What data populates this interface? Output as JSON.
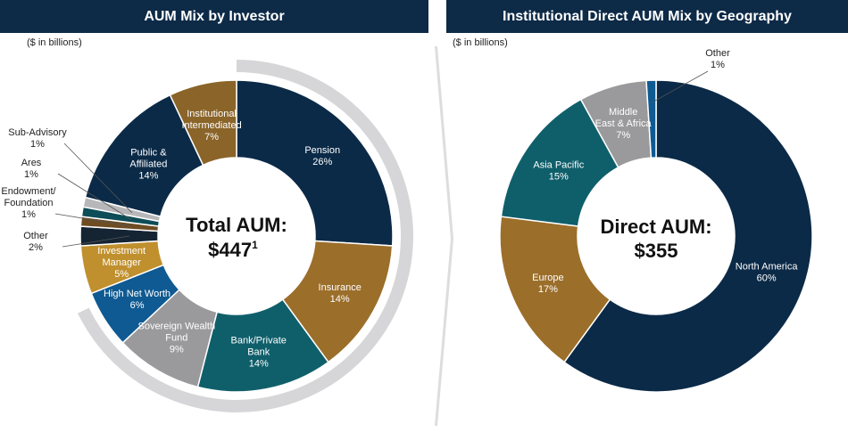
{
  "units_label": "($ in billions)",
  "chart_data": [
    {
      "type": "pie",
      "title": "AUM Mix by Investor",
      "center_title": "Total AUM:",
      "center_value": "$447",
      "center_footnote": "1",
      "slices": [
        {
          "name": "Pension",
          "value": 26,
          "label": "26%",
          "color": "#0b2a47"
        },
        {
          "name": "Insurance",
          "value": 14,
          "label": "14%",
          "color": "#9b6e2a"
        },
        {
          "name": "Bank/Private Bank",
          "value": 14,
          "label": "14%",
          "color": "#0f5f6b"
        },
        {
          "name": "Sovereign Wealth Fund",
          "value": 9,
          "label": "9%",
          "color": "#9a9a9d"
        },
        {
          "name": "High Net Worth",
          "value": 6,
          "label": "6%",
          "color": "#0f5a92"
        },
        {
          "name": "Investment Manager",
          "value": 5,
          "label": "5%",
          "color": "#c0902e"
        },
        {
          "name": "Other",
          "value": 2,
          "label": "2%",
          "color": "#142433"
        },
        {
          "name": "Endowment/ Foundation",
          "value": 1,
          "label": "1%",
          "color": "#6f4d22"
        },
        {
          "name": "Ares",
          "value": 1,
          "label": "1%",
          "color": "#0d4d57"
        },
        {
          "name": "Sub-Advisory",
          "value": 1,
          "label": "1%",
          "color": "#b7b7b9"
        },
        {
          "name": "Public & Affiliated",
          "value": 14,
          "label": "14%",
          "color": "#0b2a47"
        },
        {
          "name": "Institutional Intermediated",
          "value": 7,
          "label": "7%",
          "color": "#8a6428"
        }
      ]
    },
    {
      "type": "pie",
      "title": "Institutional Direct AUM Mix by Geography",
      "center_title": "Direct AUM:",
      "center_value": "$355",
      "slices": [
        {
          "name": "North America",
          "value": 60,
          "label": "60%",
          "color": "#0b2a47"
        },
        {
          "name": "Europe",
          "value": 17,
          "label": "17%",
          "color": "#9b6e2a"
        },
        {
          "name": "Asia Pacific",
          "value": 15,
          "label": "15%",
          "color": "#0f5f6b"
        },
        {
          "name": "Middle East & Africa",
          "value": 7,
          "label": "7%",
          "color": "#9a9a9d"
        },
        {
          "name": "Other",
          "value": 1,
          "label": "1%",
          "color": "#0f5a92"
        }
      ]
    }
  ]
}
